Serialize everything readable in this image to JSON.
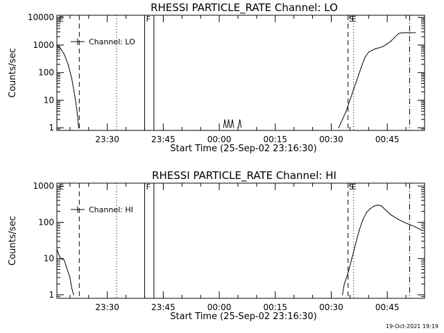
{
  "footer": {
    "timestamp": "19-Oct-2021 19:19"
  },
  "chart_data": [
    {
      "type": "line",
      "title": "RHESSI PARTICLE_RATE Channel: LO",
      "xlabel": "Start Time (25-Sep-02 23:16:30)",
      "ylabel": "Counts/sec",
      "yscale": "log",
      "xlim": [
        "23:16:30",
        "00:55:00"
      ],
      "ylim": [
        0.8,
        12000
      ],
      "x_ticks": [
        "23:30",
        "23:45",
        "00:00",
        "00:15",
        "00:30",
        "00:45"
      ],
      "y_ticks": [
        "1",
        "10",
        "100",
        "1000",
        "10000"
      ],
      "legend": {
        "label": "Channel: LO",
        "position": "upper-left"
      },
      "flags": [
        "E",
        "F",
        "S",
        "E"
      ],
      "series": [
        {
          "name": "Channel: LO",
          "points": [
            [
              "23:16:30",
              1000
            ],
            [
              "23:17:30",
              750
            ],
            [
              "23:18:30",
              450
            ],
            [
              "23:19:30",
              200
            ],
            [
              "23:20:30",
              60
            ],
            [
              "23:21:30",
              10
            ],
            [
              "23:22:00",
              3
            ],
            [
              "23:22:20",
              1
            ],
            [
              "00:32:00",
              1
            ],
            [
              "00:33:00",
              2
            ],
            [
              "00:34:00",
              4
            ],
            [
              "00:35:00",
              10
            ],
            [
              "00:36:00",
              25
            ],
            [
              "00:37:00",
              60
            ],
            [
              "00:38:00",
              150
            ],
            [
              "00:39:00",
              350
            ],
            [
              "00:40:00",
              550
            ],
            [
              "00:41:00",
              650
            ],
            [
              "00:42:00",
              750
            ],
            [
              "00:43:00",
              800
            ],
            [
              "00:44:00",
              900
            ],
            [
              "00:45:00",
              1100
            ],
            [
              "00:46:00",
              1400
            ],
            [
              "00:47:00",
              1900
            ],
            [
              "00:48:00",
              2600
            ],
            [
              "00:49:00",
              2800
            ],
            [
              "00:50:00",
              2800
            ],
            [
              "00:51:00",
              2800
            ],
            [
              "00:52:30",
              2800
            ]
          ],
          "spikes": [
            "00:01:30",
            "00:02:30",
            "00:03:30",
            "00:05:30"
          ],
          "spike_peak": 2
        }
      ],
      "markers": [
        {
          "x": "23:22:30",
          "style": "dashed"
        },
        {
          "x": "23:32:30",
          "style": "dotted"
        },
        {
          "x": "23:40:00",
          "style": "solid"
        },
        {
          "x": "23:42:30",
          "style": "solid"
        },
        {
          "x": "00:34:30",
          "style": "dashed"
        },
        {
          "x": "00:36:00",
          "style": "dotted"
        },
        {
          "x": "00:51:00",
          "style": "dashdot"
        }
      ]
    },
    {
      "type": "line",
      "title": "RHESSI PARTICLE_RATE Channel: HI",
      "xlabel": "Start Time (25-Sep-02 23:16:30)",
      "ylabel": "Counts/sec",
      "yscale": "log",
      "xlim": [
        "23:16:30",
        "00:55:00"
      ],
      "ylim": [
        0.8,
        1200
      ],
      "x_ticks": [
        "23:30",
        "23:45",
        "00:00",
        "00:15",
        "00:30",
        "00:45"
      ],
      "y_ticks": [
        "1",
        "10",
        "100",
        "1000"
      ],
      "legend": {
        "label": "Channel: HI",
        "position": "upper-left"
      },
      "flags": [
        "E",
        "F",
        "S",
        "E"
      ],
      "series": [
        {
          "name": "Channel: HI",
          "points": [
            [
              "23:16:30",
              18
            ],
            [
              "23:17:00",
              13
            ],
            [
              "23:17:30",
              10
            ],
            [
              "23:18:30",
              9
            ],
            [
              "23:19:00",
              6
            ],
            [
              "23:20:00",
              3
            ],
            [
              "23:20:30",
              1.5
            ],
            [
              "23:21:00",
              1
            ],
            [
              "00:33:00",
              1
            ],
            [
              "00:33:30",
              2
            ],
            [
              "00:34:30",
              4
            ],
            [
              "00:35:30",
              10
            ],
            [
              "00:36:30",
              25
            ],
            [
              "00:37:30",
              60
            ],
            [
              "00:38:30",
              120
            ],
            [
              "00:39:30",
              190
            ],
            [
              "00:40:30",
              240
            ],
            [
              "00:41:30",
              280
            ],
            [
              "00:42:30",
              300
            ],
            [
              "00:43:30",
              280
            ],
            [
              "00:44:30",
              220
            ],
            [
              "00:46:00",
              160
            ],
            [
              "00:48:00",
              120
            ],
            [
              "00:50:00",
              95
            ],
            [
              "00:52:30",
              75
            ],
            [
              "00:54:00",
              62
            ]
          ]
        }
      ],
      "markers": [
        {
          "x": "23:22:30",
          "style": "dashed"
        },
        {
          "x": "23:32:30",
          "style": "dotted"
        },
        {
          "x": "23:40:00",
          "style": "solid"
        },
        {
          "x": "23:42:30",
          "style": "solid"
        },
        {
          "x": "00:34:30",
          "style": "dashed"
        },
        {
          "x": "00:36:00",
          "style": "dotted"
        },
        {
          "x": "00:51:00",
          "style": "dashdot"
        }
      ]
    }
  ]
}
